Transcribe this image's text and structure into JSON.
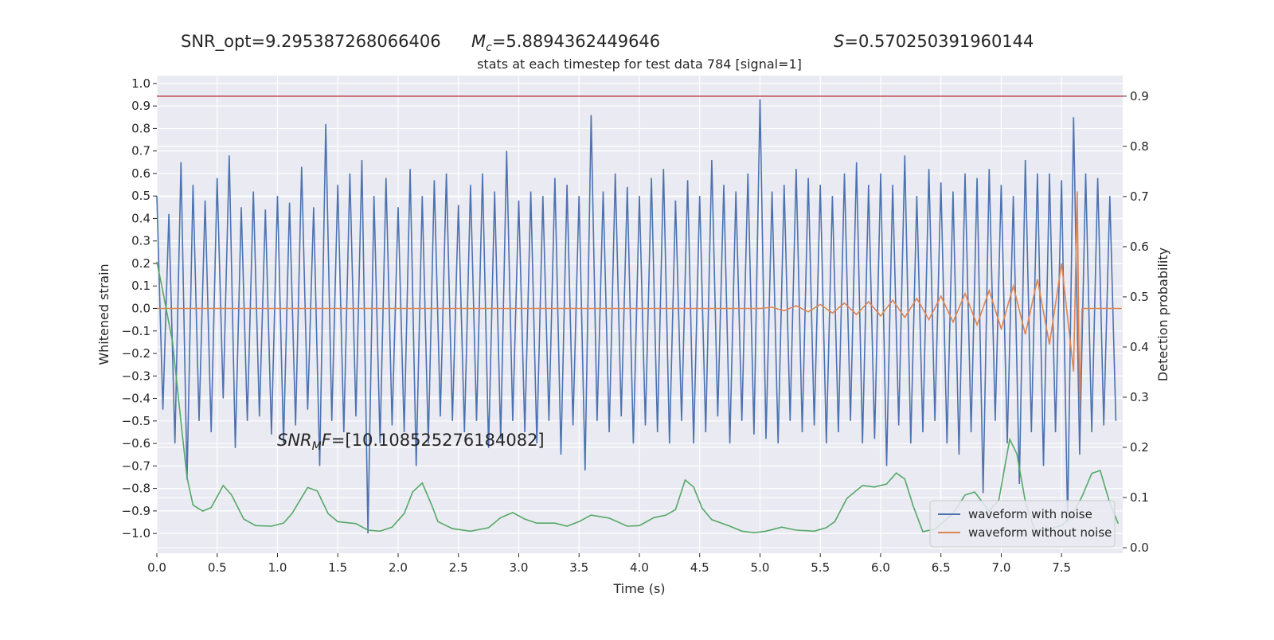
{
  "chart_data": {
    "type": "line",
    "title": "stats at each timestep for test data 784 [signal=1]",
    "annotations": {
      "snr_opt": "SNR_opt=9.295387268066406",
      "chirp_mass": {
        "symbol": "M",
        "subscript": "c",
        "value_text": "=5.8894362449646"
      },
      "spin": {
        "symbol": "S",
        "value_text": "=0.570250391960144"
      },
      "snr_mf": {
        "symbol": "SNR",
        "subscript": "M",
        "suffix": "F",
        "value_text": "=[10.108525276184082]"
      }
    },
    "xlabel": "Time (s)",
    "ylabel": "Whitened strain",
    "y2label": "Detection probability",
    "xlim": [
      0,
      8.007
    ],
    "ylim": [
      -1.088,
      1.035
    ],
    "y2lim": [
      -0.011,
      0.941
    ],
    "xticks": [
      {
        "value": 0,
        "label": "0.0"
      },
      {
        "value": 0.5,
        "label": "0.5"
      },
      {
        "value": 1,
        "label": "1.0"
      },
      {
        "value": 1.5,
        "label": "1.5"
      },
      {
        "value": 2,
        "label": "2.0"
      },
      {
        "value": 2.5,
        "label": "2.5"
      },
      {
        "value": 3,
        "label": "3.0"
      },
      {
        "value": 3.5,
        "label": "3.5"
      },
      {
        "value": 4,
        "label": "4.0"
      },
      {
        "value": 4.5,
        "label": "4.5"
      },
      {
        "value": 5,
        "label": "5.0"
      },
      {
        "value": 5.5,
        "label": "5.5"
      },
      {
        "value": 6,
        "label": "6.0"
      },
      {
        "value": 6.5,
        "label": "6.5"
      },
      {
        "value": 7,
        "label": "7.0"
      },
      {
        "value": 7.5,
        "label": "7.5"
      }
    ],
    "yticks": [
      {
        "value": -1,
        "label": "−1.0"
      },
      {
        "value": -0.9,
        "label": "−0.9"
      },
      {
        "value": -0.8,
        "label": "−0.8"
      },
      {
        "value": -0.7,
        "label": "−0.7"
      },
      {
        "value": -0.6,
        "label": "−0.6"
      },
      {
        "value": -0.5,
        "label": "−0.5"
      },
      {
        "value": -0.4,
        "label": "−0.4"
      },
      {
        "value": -0.3,
        "label": "−0.3"
      },
      {
        "value": -0.2,
        "label": "−0.2"
      },
      {
        "value": -0.1,
        "label": "−0.1"
      },
      {
        "value": 0,
        "label": "0.0"
      },
      {
        "value": 0.1,
        "label": "0.1"
      },
      {
        "value": 0.2,
        "label": "0.2"
      },
      {
        "value": 0.3,
        "label": "0.3"
      },
      {
        "value": 0.4,
        "label": "0.4"
      },
      {
        "value": 0.5,
        "label": "0.5"
      },
      {
        "value": 0.6,
        "label": "0.6"
      },
      {
        "value": 0.7,
        "label": "0.7"
      },
      {
        "value": 0.8,
        "label": "0.8"
      },
      {
        "value": 0.9,
        "label": "0.9"
      },
      {
        "value": 1,
        "label": "1.0"
      }
    ],
    "y2ticks": [
      {
        "value": 0,
        "label": "0.0"
      },
      {
        "value": 0.1,
        "label": "0.1"
      },
      {
        "value": 0.2,
        "label": "0.2"
      },
      {
        "value": 0.3,
        "label": "0.3"
      },
      {
        "value": 0.4,
        "label": "0.4"
      },
      {
        "value": 0.5,
        "label": "0.5"
      },
      {
        "value": 0.6,
        "label": "0.6"
      },
      {
        "value": 0.7,
        "label": "0.7"
      },
      {
        "value": 0.8,
        "label": "0.8"
      },
      {
        "value": 0.9,
        "label": "0.9"
      }
    ],
    "grid": true,
    "legend": "lower right",
    "hlines": [
      {
        "value": 0.9,
        "axis": "y2",
        "color": "#c44e52"
      }
    ],
    "series": [
      {
        "name": "waveform with noise",
        "color": "#4c72b0",
        "x": [
          0,
          0.05,
          0.1,
          0.15,
          0.2,
          0.25,
          0.3,
          0.35,
          0.4,
          0.45,
          0.5,
          0.55,
          0.6,
          0.65,
          0.7,
          0.75,
          0.8,
          0.85,
          0.9,
          0.95,
          1,
          1.05,
          1.1,
          1.15,
          1.2,
          1.25,
          1.3,
          1.35,
          1.4,
          1.45,
          1.5,
          1.55,
          1.6,
          1.65,
          1.7,
          1.75,
          1.8,
          1.85,
          1.9,
          1.95,
          2,
          2.05,
          2.1,
          2.15,
          2.2,
          2.25,
          2.3,
          2.35,
          2.4,
          2.45,
          2.5,
          2.55,
          2.6,
          2.65,
          2.7,
          2.75,
          2.8,
          2.85,
          2.9,
          2.95,
          3,
          3.05,
          3.1,
          3.15,
          3.2,
          3.25,
          3.3,
          3.35,
          3.4,
          3.45,
          3.5,
          3.55,
          3.6,
          3.65,
          3.7,
          3.75,
          3.8,
          3.85,
          3.9,
          3.95,
          4,
          4.05,
          4.1,
          4.15,
          4.2,
          4.25,
          4.3,
          4.35,
          4.4,
          4.45,
          4.5,
          4.55,
          4.6,
          4.65,
          4.7,
          4.75,
          4.8,
          4.85,
          4.9,
          4.95,
          5,
          5.05,
          5.1,
          5.15,
          5.2,
          5.25,
          5.3,
          5.35,
          5.4,
          5.45,
          5.5,
          5.55,
          5.6,
          5.65,
          5.7,
          5.75,
          5.8,
          5.85,
          5.9,
          5.95,
          6,
          6.05,
          6.1,
          6.15,
          6.2,
          6.25,
          6.3,
          6.35,
          6.4,
          6.45,
          6.5,
          6.55,
          6.6,
          6.65,
          6.7,
          6.75,
          6.8,
          6.85,
          6.9,
          6.95,
          7,
          7.05,
          7.1,
          7.15,
          7.2,
          7.25,
          7.3,
          7.35,
          7.4,
          7.45,
          7.5,
          7.55,
          7.6,
          7.65,
          7.7,
          7.75,
          7.8,
          7.85,
          7.9,
          7.95
        ],
        "values": [
          0.5,
          -0.45,
          0.42,
          -0.6,
          0.65,
          -0.76,
          0.55,
          -0.5,
          0.48,
          -0.55,
          0.58,
          -0.4,
          0.68,
          -0.62,
          0.45,
          -0.5,
          0.52,
          -0.48,
          0.44,
          -0.56,
          0.5,
          -0.6,
          0.47,
          -0.52,
          0.63,
          -0.45,
          0.45,
          -0.7,
          0.82,
          -0.5,
          0.55,
          -0.55,
          0.6,
          -0.48,
          0.66,
          -1.0,
          0.5,
          -0.6,
          0.58,
          -0.52,
          0.45,
          -0.55,
          0.62,
          -0.7,
          0.5,
          -0.6,
          0.57,
          -0.48,
          0.6,
          -0.5,
          0.46,
          -0.55,
          0.55,
          -0.5,
          0.6,
          -0.62,
          0.52,
          -0.58,
          0.7,
          -0.5,
          0.48,
          -0.55,
          0.52,
          -0.6,
          0.5,
          -0.5,
          0.58,
          -0.65,
          0.55,
          -0.52,
          0.5,
          -0.72,
          0.86,
          -0.5,
          0.52,
          -0.55,
          0.6,
          -0.48,
          0.54,
          -0.6,
          0.5,
          -0.52,
          0.58,
          -0.55,
          0.62,
          -0.6,
          0.48,
          -0.5,
          0.57,
          -0.6,
          0.5,
          -0.55,
          0.66,
          -0.48,
          0.55,
          -0.6,
          0.52,
          -0.5,
          0.6,
          -0.56,
          0.93,
          -0.58,
          0.52,
          -0.6,
          0.55,
          -0.5,
          0.62,
          -0.55,
          0.58,
          -0.52,
          0.55,
          -0.6,
          0.5,
          -0.55,
          0.6,
          -0.5,
          0.65,
          -0.6,
          0.55,
          -0.58,
          0.6,
          -0.7,
          0.55,
          -0.52,
          0.68,
          -0.6,
          0.5,
          -0.55,
          0.62,
          -0.5,
          0.56,
          -0.6,
          0.52,
          -0.65,
          0.6,
          -0.55,
          0.58,
          -0.82,
          0.62,
          -0.5,
          0.55,
          -0.6,
          0.5,
          -0.78,
          0.66,
          -0.55,
          0.6,
          -0.7,
          0.6,
          -0.55,
          0.57,
          -0.95,
          0.85,
          -0.65,
          0.6,
          -0.55,
          0.58,
          -0.52,
          0.5,
          -0.5
        ]
      },
      {
        "name": "waveform without noise",
        "color": "#dd8452",
        "x": [
          0,
          5.0,
          5.1,
          5.2,
          5.3,
          5.4,
          5.5,
          5.6,
          5.7,
          5.8,
          5.9,
          6.0,
          6.1,
          6.2,
          6.3,
          6.4,
          6.5,
          6.6,
          6.7,
          6.8,
          6.9,
          7.0,
          7.1,
          7.2,
          7.3,
          7.4,
          7.5,
          7.6,
          7.63,
          7.65,
          7.67,
          8.0
        ],
        "values": [
          0,
          0,
          0.005,
          -0.01,
          0.012,
          -0.015,
          0.018,
          -0.02,
          0.024,
          -0.027,
          0.03,
          -0.033,
          0.037,
          -0.04,
          0.045,
          -0.05,
          0.055,
          -0.06,
          0.066,
          -0.073,
          0.08,
          -0.09,
          0.1,
          -0.115,
          0.13,
          -0.16,
          0.2,
          -0.28,
          0.52,
          -0.45,
          0,
          0
        ]
      },
      {
        "axis": "y2",
        "color": "#55a868",
        "x": [
          0,
          0.05,
          0.13,
          0.2,
          0.25,
          0.3,
          0.38,
          0.45,
          0.55,
          0.62,
          0.72,
          0.82,
          0.95,
          1.05,
          1.12,
          1.25,
          1.33,
          1.42,
          1.5,
          1.65,
          1.75,
          1.85,
          1.95,
          2.05,
          2.12,
          2.2,
          2.28,
          2.33,
          2.45,
          2.6,
          2.75,
          2.85,
          2.95,
          3.05,
          3.15,
          3.3,
          3.4,
          3.5,
          3.6,
          3.75,
          3.9,
          4.0,
          4.12,
          4.22,
          4.3,
          4.38,
          4.45,
          4.52,
          4.6,
          4.75,
          4.85,
          4.95,
          5.05,
          5.18,
          5.3,
          5.45,
          5.55,
          5.62,
          5.72,
          5.85,
          5.95,
          6.05,
          6.13,
          6.2,
          6.27,
          6.35,
          6.45,
          6.6,
          6.7,
          6.78,
          6.85,
          6.9,
          6.98,
          7.07,
          7.13,
          7.2,
          7.28,
          7.4,
          7.5,
          7.58,
          7.67,
          7.75,
          7.82,
          7.9,
          7.97
        ],
        "values": [
          0.57,
          0.51,
          0.41,
          0.25,
          0.14,
          0.085,
          0.073,
          0.08,
          0.124,
          0.105,
          0.057,
          0.044,
          0.043,
          0.049,
          0.068,
          0.12,
          0.113,
          0.068,
          0.052,
          0.048,
          0.035,
          0.033,
          0.041,
          0.068,
          0.111,
          0.129,
          0.084,
          0.052,
          0.038,
          0.033,
          0.04,
          0.06,
          0.07,
          0.057,
          0.049,
          0.049,
          0.043,
          0.052,
          0.065,
          0.059,
          0.043,
          0.044,
          0.06,
          0.065,
          0.076,
          0.135,
          0.121,
          0.079,
          0.056,
          0.043,
          0.033,
          0.03,
          0.033,
          0.041,
          0.035,
          0.033,
          0.04,
          0.052,
          0.098,
          0.124,
          0.121,
          0.127,
          0.149,
          0.137,
          0.083,
          0.032,
          0.037,
          0.068,
          0.105,
          0.111,
          0.089,
          0.073,
          0.095,
          0.216,
          0.187,
          0.092,
          0.033,
          0.038,
          0.044,
          0.063,
          0.102,
          0.148,
          0.154,
          0.089,
          0.048
        ]
      }
    ]
  }
}
